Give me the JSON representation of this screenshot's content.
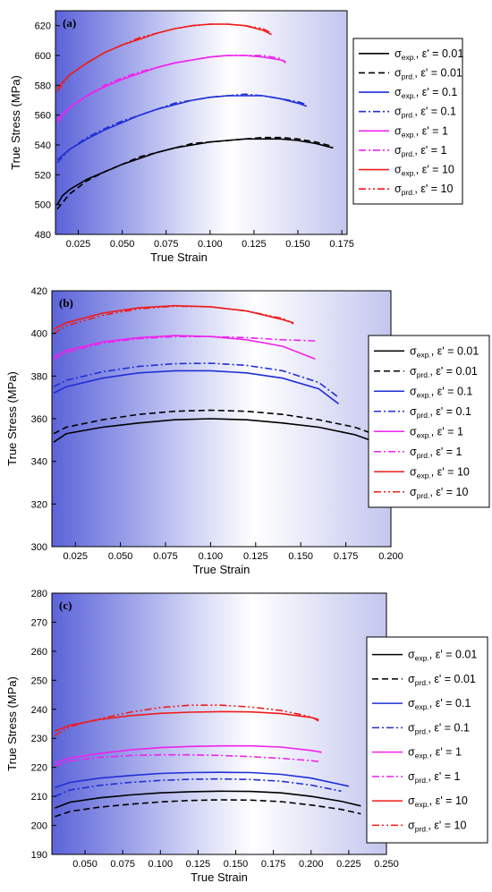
{
  "chart_data": [
    {
      "type": "line",
      "panel_label": "(a)",
      "xlabel": "True Strain",
      "ylabel": "True Stress (MPa)",
      "xlim": [
        0.012,
        0.178
      ],
      "ylim": [
        480,
        630
      ],
      "xticks": [
        "0.025",
        "0.050",
        "0.075",
        "0.100",
        "0.125",
        "0.150",
        "0.175"
      ],
      "yticks": [
        "480",
        "500",
        "520",
        "540",
        "560",
        "580",
        "600",
        "620"
      ],
      "legend_position": "right",
      "series": [
        {
          "name": "σexp., ε' = 0.01",
          "legend": {
            "sym": "σ",
            "sub": "exp.",
            "rest": ", ε' = 0.01"
          },
          "color": "#000000",
          "style": "solid",
          "x": [
            0.013,
            0.016,
            0.02,
            0.03,
            0.04,
            0.05,
            0.06,
            0.07,
            0.08,
            0.09,
            0.1,
            0.11,
            0.12,
            0.13,
            0.14,
            0.15,
            0.16,
            0.17
          ],
          "y": [
            500,
            506,
            510,
            517,
            522,
            527,
            531,
            535,
            538,
            540,
            542,
            543,
            544,
            544,
            544,
            543,
            541,
            538
          ]
        },
        {
          "name": "σprd., ε' = 0.01",
          "legend": {
            "sym": "σ",
            "sub": "prd.",
            "rest": ", ε' = 0.01"
          },
          "color": "#000000",
          "style": "dash",
          "x": [
            0.013,
            0.02,
            0.03,
            0.04,
            0.05,
            0.06,
            0.07,
            0.08,
            0.09,
            0.1,
            0.11,
            0.12,
            0.13,
            0.14,
            0.15,
            0.16,
            0.17
          ],
          "y": [
            497,
            507,
            516,
            522,
            527,
            532,
            535,
            538,
            541,
            542,
            543,
            544,
            545,
            545,
            544,
            542,
            539
          ]
        },
        {
          "name": "σexp., ε' = 0.1",
          "legend": {
            "sym": "σ",
            "sub": "exp.",
            "rest": ", ε' = 0.1"
          },
          "color": "#1f2fd6",
          "style": "solid",
          "x": [
            0.013,
            0.02,
            0.03,
            0.04,
            0.05,
            0.06,
            0.07,
            0.08,
            0.09,
            0.1,
            0.11,
            0.12,
            0.13,
            0.14,
            0.15,
            0.155
          ],
          "y": [
            530,
            537,
            544,
            550,
            555,
            560,
            564,
            567,
            570,
            572,
            573,
            573,
            573,
            571,
            568,
            566
          ]
        },
        {
          "name": "σprd., ε' = 0.1",
          "legend": {
            "sym": "σ",
            "sub": "prd.",
            "rest": ", ε' = 0.1"
          },
          "color": "#1f2fd6",
          "style": "dashdot",
          "x": [
            0.013,
            0.02,
            0.03,
            0.04,
            0.05,
            0.06,
            0.07,
            0.08,
            0.09,
            0.1,
            0.11,
            0.12,
            0.13,
            0.14,
            0.15,
            0.155
          ],
          "y": [
            528,
            537,
            545,
            551,
            556,
            560,
            564,
            568,
            570,
            572,
            573,
            574,
            573,
            571,
            569,
            567
          ]
        },
        {
          "name": "σexp., ε' = 1",
          "legend": {
            "sym": "σ",
            "sub": "exp.",
            "rest": ", ε' = 1"
          },
          "color": "#ee22ee",
          "style": "solid",
          "x": [
            0.013,
            0.02,
            0.03,
            0.04,
            0.05,
            0.06,
            0.07,
            0.08,
            0.09,
            0.1,
            0.11,
            0.12,
            0.13,
            0.14,
            0.143
          ],
          "y": [
            557,
            565,
            573,
            579,
            584,
            588,
            592,
            595,
            597,
            599,
            600,
            600,
            599,
            597,
            596
          ]
        },
        {
          "name": "σprd., ε' = 1",
          "legend": {
            "sym": "σ",
            "sub": "prd.",
            "rest": ", ε' = 1"
          },
          "color": "#ee22ee",
          "style": "dashdot",
          "x": [
            0.013,
            0.02,
            0.03,
            0.04,
            0.05,
            0.06,
            0.07,
            0.08,
            0.09,
            0.1,
            0.11,
            0.12,
            0.13,
            0.14,
            0.143
          ],
          "y": [
            555,
            565,
            573,
            580,
            585,
            589,
            592,
            595,
            597,
            599,
            600,
            600,
            600,
            598,
            595
          ]
        },
        {
          "name": "σexp., ε' = 10",
          "legend": {
            "sym": "σ",
            "sub": "exp.",
            "rest": ", ε' = 10"
          },
          "color": "#ee1c1c",
          "style": "solid",
          "x": [
            0.013,
            0.02,
            0.03,
            0.04,
            0.05,
            0.06,
            0.07,
            0.08,
            0.09,
            0.1,
            0.11,
            0.12,
            0.13,
            0.135
          ],
          "y": [
            578,
            587,
            595,
            602,
            607,
            611,
            615,
            618,
            620,
            621,
            621,
            620,
            617,
            614
          ]
        },
        {
          "name": "σprd., ε' = 10",
          "legend": {
            "sym": "σ",
            "sub": "prd.",
            "rest": ", ε' = 10"
          },
          "color": "#ee1c1c",
          "style": "dashdotdot",
          "x": [
            0.013,
            0.02,
            0.03,
            0.04,
            0.05,
            0.06,
            0.07,
            0.08,
            0.09,
            0.1,
            0.11,
            0.12,
            0.13,
            0.135
          ],
          "y": [
            576,
            587,
            595,
            602,
            607,
            612,
            615,
            618,
            620,
            621,
            621,
            620,
            618,
            615
          ]
        }
      ]
    },
    {
      "type": "line",
      "panel_label": "(b)",
      "xlabel": "True Strain",
      "ylabel": "True Stress (MPa)",
      "xlim": [
        0.012,
        0.2
      ],
      "ylim": [
        300,
        420
      ],
      "xticks": [
        "0.025",
        "0.050",
        "0.075",
        "0.100",
        "0.125",
        "0.150",
        "0.175",
        "0.200"
      ],
      "yticks": [
        "300",
        "320",
        "340",
        "360",
        "380",
        "400",
        "420"
      ],
      "legend_position": "right",
      "series": [
        {
          "name": "σexp., ε' = 0.01",
          "legend": {
            "sym": "σ",
            "sub": "exp.",
            "rest": ", ε' = 0.01"
          },
          "color": "#000000",
          "style": "solid",
          "x": [
            0.013,
            0.02,
            0.04,
            0.06,
            0.08,
            0.1,
            0.12,
            0.14,
            0.16,
            0.18,
            0.19
          ],
          "y": [
            349,
            353,
            356,
            358,
            359.5,
            360,
            359.5,
            358,
            356,
            352.5,
            349.5
          ]
        },
        {
          "name": "σprd., ε' = 0.01",
          "legend": {
            "sym": "σ",
            "sub": "prd.",
            "rest": ", ε' = 0.01"
          },
          "color": "#000000",
          "style": "dash",
          "x": [
            0.013,
            0.02,
            0.04,
            0.06,
            0.08,
            0.1,
            0.12,
            0.14,
            0.16,
            0.18,
            0.19
          ],
          "y": [
            353,
            356,
            359.5,
            362,
            363.5,
            364,
            363.5,
            362,
            359.5,
            356,
            353
          ]
        },
        {
          "name": "σexp., ε' = 0.1",
          "legend": {
            "sym": "σ",
            "sub": "exp.",
            "rest": ", ε' = 0.1"
          },
          "color": "#1f2fd6",
          "style": "solid",
          "x": [
            0.013,
            0.02,
            0.04,
            0.06,
            0.08,
            0.1,
            0.12,
            0.14,
            0.16,
            0.171
          ],
          "y": [
            372,
            375,
            379,
            381.5,
            382.5,
            382.5,
            381.5,
            379,
            374,
            367
          ]
        },
        {
          "name": "σprd., ε' = 0.1",
          "legend": {
            "sym": "σ",
            "sub": "prd.",
            "rest": ", ε' = 0.1"
          },
          "color": "#1f2fd6",
          "style": "dashdot",
          "x": [
            0.013,
            0.02,
            0.04,
            0.06,
            0.08,
            0.1,
            0.12,
            0.14,
            0.16,
            0.171
          ],
          "y": [
            375,
            378,
            382,
            384.5,
            385.8,
            386,
            385,
            382.5,
            377,
            370
          ]
        },
        {
          "name": "σexp., ε' = 1",
          "legend": {
            "sym": "σ",
            "sub": "exp.",
            "rest": ", ε' = 1"
          },
          "color": "#ee22ee",
          "style": "solid",
          "x": [
            0.013,
            0.02,
            0.04,
            0.06,
            0.08,
            0.1,
            0.12,
            0.14,
            0.158
          ],
          "y": [
            389,
            392,
            396,
            398,
            399,
            398.5,
            397,
            394,
            388
          ]
        },
        {
          "name": "σprd., ε' = 1",
          "legend": {
            "sym": "σ",
            "sub": "prd.",
            "rest": ", ε' = 1"
          },
          "color": "#ee22ee",
          "style": "dashdot",
          "x": [
            0.013,
            0.02,
            0.04,
            0.06,
            0.08,
            0.1,
            0.12,
            0.14,
            0.158
          ],
          "y": [
            388,
            391,
            395.5,
            397.5,
            398.5,
            398.5,
            398,
            397,
            396.5
          ]
        },
        {
          "name": "σexp., ε' = 10",
          "legend": {
            "sym": "σ",
            "sub": "exp.",
            "rest": ", ε' = 10"
          },
          "color": "#ee1c1c",
          "style": "solid",
          "x": [
            0.013,
            0.02,
            0.04,
            0.06,
            0.08,
            0.1,
            0.12,
            0.14,
            0.146
          ],
          "y": [
            402,
            405,
            409.5,
            412,
            413,
            412.5,
            410.5,
            406.5,
            405
          ]
        },
        {
          "name": "σprd., ε' = 10",
          "legend": {
            "sym": "σ",
            "sub": "prd.",
            "rest": ", ε' = 10"
          },
          "color": "#ee1c1c",
          "style": "dashdotdot",
          "x": [
            0.013,
            0.02,
            0.04,
            0.06,
            0.08,
            0.1,
            0.12,
            0.14,
            0.146
          ],
          "y": [
            400,
            403.5,
            408.5,
            411.5,
            412.8,
            412.5,
            410.5,
            407,
            404.5
          ]
        }
      ]
    },
    {
      "type": "line",
      "panel_label": "(c)",
      "xlabel": "True Strain",
      "ylabel": "True Stress (MPa)",
      "xlim": [
        0.028,
        0.25
      ],
      "ylim": [
        190,
        280
      ],
      "xticks": [
        "0.050",
        "0.075",
        "0.100",
        "0.125",
        "0.150",
        "0.175",
        "0.200",
        "0.225",
        "0.250"
      ],
      "yticks": [
        "190",
        "200",
        "210",
        "220",
        "230",
        "240",
        "250",
        "260",
        "270",
        "280"
      ],
      "legend_position": "right",
      "series": [
        {
          "name": "σexp., ε' = 0.01",
          "legend": {
            "sym": "σ",
            "sub": "exp.",
            "rest": ", ε' = 0.01"
          },
          "color": "#000000",
          "style": "solid",
          "x": [
            0.03,
            0.04,
            0.06,
            0.08,
            0.1,
            0.12,
            0.14,
            0.16,
            0.18,
            0.2,
            0.22,
            0.233
          ],
          "y": [
            206,
            208,
            209.5,
            210.5,
            211.2,
            211.6,
            211.8,
            211.7,
            211.2,
            210,
            208.3,
            206.7
          ]
        },
        {
          "name": "σprd., ε' = 0.01",
          "legend": {
            "sym": "σ",
            "sub": "prd.",
            "rest": ", ε' = 0.01"
          },
          "color": "#000000",
          "style": "dash",
          "x": [
            0.03,
            0.04,
            0.06,
            0.08,
            0.1,
            0.12,
            0.14,
            0.16,
            0.18,
            0.2,
            0.22,
            0.233
          ],
          "y": [
            203,
            204.8,
            206.3,
            207.3,
            208.1,
            208.6,
            208.8,
            208.7,
            208.2,
            207,
            205.5,
            204
          ]
        },
        {
          "name": "σexp., ε' = 0.1",
          "legend": {
            "sym": "σ",
            "sub": "exp.",
            "rest": ", ε' = 0.1"
          },
          "color": "#1f2fd6",
          "style": "solid",
          "x": [
            0.03,
            0.04,
            0.06,
            0.08,
            0.1,
            0.12,
            0.14,
            0.16,
            0.18,
            0.2,
            0.225
          ],
          "y": [
            213,
            214.8,
            216.3,
            217.2,
            217.9,
            218.2,
            218.3,
            218.2,
            217.6,
            216.3,
            213.5
          ]
        },
        {
          "name": "σprd., ε' = 0.1",
          "legend": {
            "sym": "σ",
            "sub": "prd.",
            "rest": ", ε' = 0.1"
          },
          "color": "#1f2fd6",
          "style": "dashdot",
          "x": [
            0.03,
            0.04,
            0.06,
            0.08,
            0.1,
            0.12,
            0.14,
            0.16,
            0.18,
            0.2,
            0.22
          ],
          "y": [
            210,
            212.2,
            213.8,
            214.8,
            215.5,
            215.9,
            216,
            215.8,
            215.2,
            213.9,
            211.8
          ]
        },
        {
          "name": "σexp., ε' = 1",
          "legend": {
            "sym": "σ",
            "sub": "exp.",
            "rest": ", ε' = 1"
          },
          "color": "#ee22ee",
          "style": "solid",
          "x": [
            0.03,
            0.04,
            0.06,
            0.08,
            0.1,
            0.12,
            0.14,
            0.16,
            0.18,
            0.2,
            0.207
          ],
          "y": [
            221.5,
            223.2,
            224.8,
            226,
            226.8,
            227.2,
            227.4,
            227.4,
            227,
            225.8,
            225.2
          ]
        },
        {
          "name": "σprd., ε' = 1",
          "legend": {
            "sym": "σ",
            "sub": "prd.",
            "rest": ", ε' = 1"
          },
          "color": "#ee22ee",
          "style": "dashdot",
          "x": [
            0.03,
            0.04,
            0.06,
            0.08,
            0.1,
            0.12,
            0.14,
            0.16,
            0.18,
            0.2,
            0.205
          ],
          "y": [
            220.5,
            222.2,
            223.4,
            224.1,
            224.3,
            224.3,
            224.1,
            223.7,
            223.1,
            222.3,
            222
          ]
        },
        {
          "name": "σexp., ε' = 10",
          "legend": {
            "sym": "σ",
            "sub": "exp.",
            "rest": ", ε' = 10"
          },
          "color": "#ee1c1c",
          "style": "solid",
          "x": [
            0.03,
            0.04,
            0.06,
            0.08,
            0.1,
            0.12,
            0.14,
            0.16,
            0.18,
            0.2,
            0.205
          ],
          "y": [
            232.5,
            234.5,
            236.5,
            237.8,
            238.6,
            239,
            239.2,
            239.1,
            238.5,
            237.2,
            236.5
          ]
        },
        {
          "name": "σprd., ε' = 10",
          "legend": {
            "sym": "σ",
            "sub": "prd.",
            "rest": ", ε' = 10"
          },
          "color": "#ee1c1c",
          "style": "dashdotdot",
          "x": [
            0.03,
            0.04,
            0.06,
            0.08,
            0.1,
            0.12,
            0.14,
            0.16,
            0.18,
            0.2,
            0.205
          ],
          "y": [
            231,
            234,
            236.8,
            239,
            240.6,
            241.4,
            241.4,
            240.8,
            239.6,
            237.4,
            236
          ]
        }
      ]
    }
  ]
}
